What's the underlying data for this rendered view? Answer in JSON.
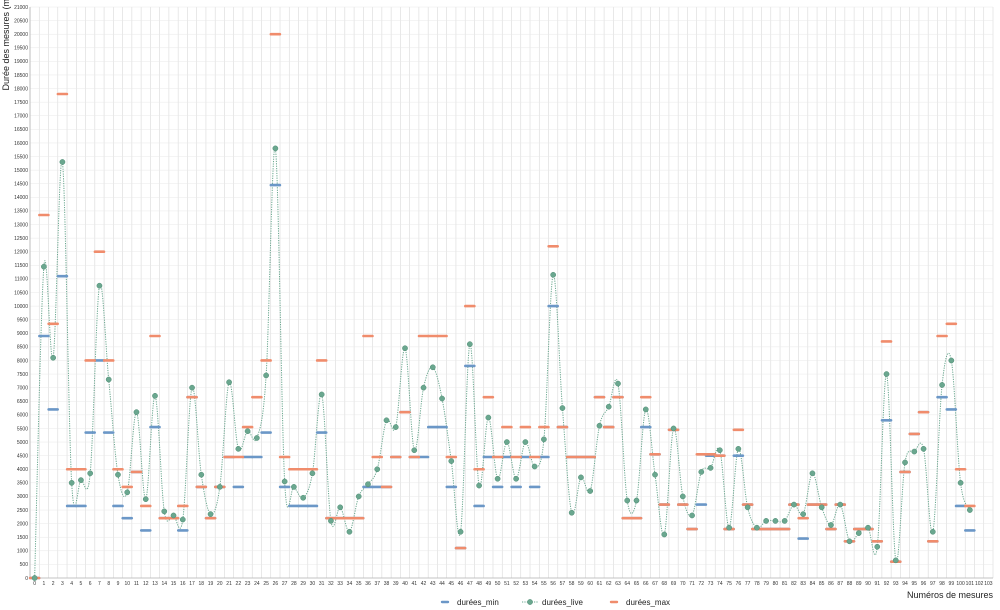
{
  "chart_data": {
    "type": "line",
    "ylabel": "Durée des mesures (ms)",
    "xlabel": "Numéros de mesures",
    "ylim": [
      0,
      21000
    ],
    "ytick_step": 500,
    "xlim": [
      0,
      103
    ],
    "grid": true,
    "legend_position": "bottom-center",
    "series": [
      {
        "name": "durées_min",
        "marker": "dash",
        "color": "#6b97c7",
        "values": [
          0,
          8900,
          6200,
          11100,
          2650,
          2650,
          5350,
          8000,
          5350,
          2650,
          2200,
          3900,
          1750,
          5550,
          2200,
          2200,
          1750,
          6650,
          3350,
          2200,
          3350,
          4450,
          3350,
          4450,
          4450,
          5350,
          14450,
          3350,
          2650,
          2650,
          2650,
          5350,
          2200,
          2200,
          2200,
          2200,
          3350,
          3350,
          3350,
          4450,
          6100,
          4450,
          4450,
          5550,
          5550,
          3350,
          1100,
          7800,
          2650,
          4450,
          3350,
          4450,
          3350,
          4450,
          3350,
          4450,
          10000,
          5550,
          4450,
          4450,
          4450,
          6650,
          5550,
          6650,
          2200,
          2200,
          5550,
          4550,
          2700,
          5450,
          2700,
          1800,
          2700,
          4500,
          4500,
          1800,
          4500,
          2700,
          1800,
          1800,
          1800,
          1800,
          2700,
          1450,
          2700,
          2700,
          1800,
          2700,
          1350,
          1800,
          1800,
          1350,
          5800,
          600,
          3900,
          5300,
          6100,
          1350,
          6650,
          6200,
          2650,
          1750,
          null,
          null
        ]
      },
      {
        "name": "durées_live",
        "marker": "circle",
        "color": "#6aa78f",
        "values": [
          0,
          11450,
          8100,
          15300,
          3500,
          3600,
          3850,
          10750,
          7300,
          3800,
          3150,
          6100,
          2900,
          6700,
          2450,
          2300,
          2150,
          7000,
          3800,
          2350,
          3350,
          7200,
          4750,
          5400,
          5150,
          7450,
          15800,
          3550,
          3350,
          2950,
          3850,
          6750,
          2100,
          2600,
          1700,
          3000,
          3450,
          4000,
          5800,
          5550,
          8450,
          4700,
          7000,
          7750,
          6600,
          4300,
          1700,
          8600,
          3400,
          5900,
          3650,
          5000,
          3650,
          5000,
          4100,
          5100,
          11150,
          6250,
          2400,
          3700,
          3200,
          5600,
          6300,
          7150,
          2850,
          2850,
          6200,
          3800,
          1600,
          5500,
          3000,
          2300,
          3900,
          4050,
          4700,
          1850,
          4750,
          2600,
          1850,
          2100,
          2100,
          2100,
          2700,
          2350,
          3850,
          2600,
          1950,
          2700,
          1350,
          1650,
          1850,
          1150,
          7500,
          650,
          4250,
          4650,
          4750,
          1700,
          7100,
          8000,
          3500,
          2500,
          null,
          null
        ]
      },
      {
        "name": "durées_max",
        "marker": "dash",
        "color": "#f08c6c",
        "values": [
          0,
          13350,
          9350,
          17800,
          4000,
          4000,
          8000,
          12000,
          8000,
          4000,
          3350,
          3900,
          2650,
          8900,
          2200,
          2200,
          2650,
          6650,
          3350,
          2200,
          3350,
          4450,
          4450,
          5550,
          6650,
          8000,
          20000,
          4450,
          4000,
          4000,
          4000,
          8000,
          2200,
          2200,
          2200,
          2200,
          8900,
          4450,
          3350,
          4450,
          6100,
          4450,
          8900,
          8900,
          8900,
          4450,
          1100,
          10000,
          4000,
          6650,
          4450,
          5550,
          4450,
          5550,
          4450,
          5550,
          12200,
          5550,
          4450,
          4450,
          4450,
          6650,
          5550,
          6650,
          2200,
          2200,
          6650,
          4550,
          2700,
          5450,
          2700,
          1800,
          4550,
          4550,
          4500,
          1800,
          5450,
          2700,
          1800,
          1800,
          1800,
          1800,
          2700,
          2200,
          2700,
          2700,
          1800,
          2700,
          1350,
          1800,
          1800,
          1350,
          8700,
          600,
          3900,
          5300,
          6100,
          1350,
          8900,
          9350,
          4000,
          2650,
          null,
          null
        ]
      }
    ]
  }
}
